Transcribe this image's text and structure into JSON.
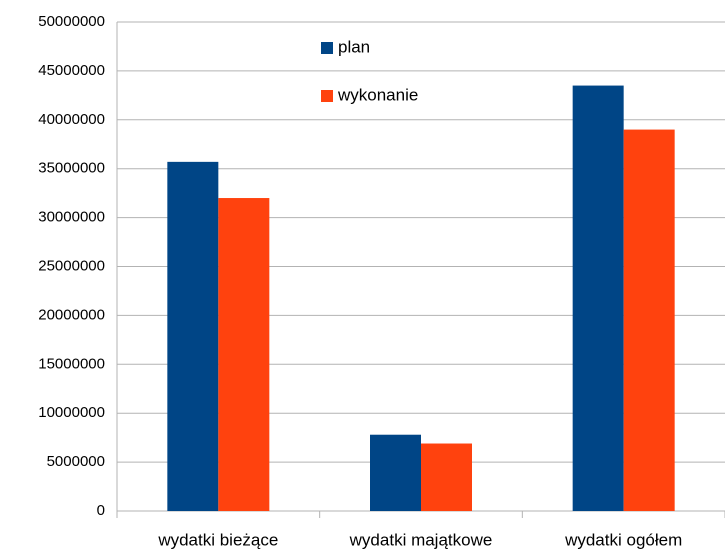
{
  "chart_data": {
    "type": "bar",
    "categories": [
      "wydatki bieżące",
      "wydatki majątkowe",
      "wydatki ogółem"
    ],
    "series": [
      {
        "name": "plan",
        "color": "#004586",
        "values": [
          35700000,
          7800000,
          43500000
        ]
      },
      {
        "name": "wykonanie",
        "color": "#ff420e",
        "values": [
          32000000,
          6900000,
          39000000
        ]
      }
    ],
    "ylim": [
      0,
      50000000
    ],
    "yticks": [
      0,
      5000000,
      10000000,
      15000000,
      20000000,
      25000000,
      30000000,
      35000000,
      40000000,
      45000000,
      50000000
    ],
    "grid": true
  }
}
